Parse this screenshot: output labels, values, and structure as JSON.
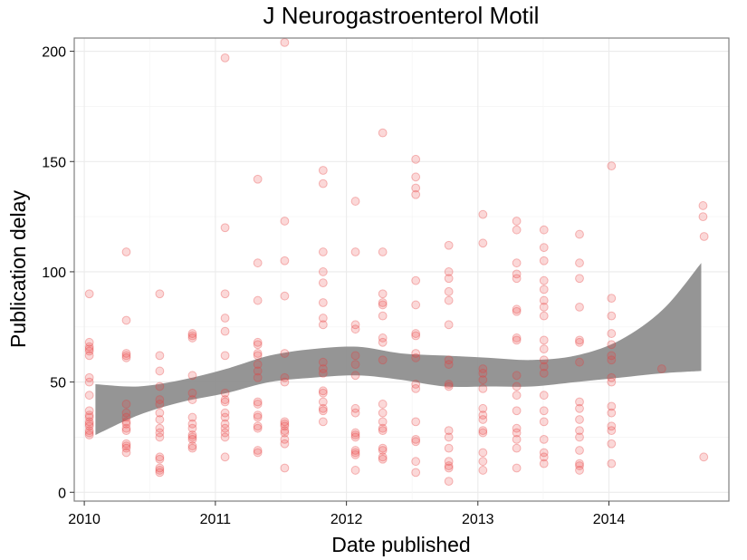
{
  "chart_data": {
    "type": "scatter",
    "title": "J Neurogastroenterol Motil",
    "xlabel": "Date published",
    "ylabel": "Publication delay",
    "x_axis": {
      "type": "date",
      "min": "2009-12-04",
      "max": "2014-12-01",
      "ticks": [
        "2010",
        "2011",
        "2012",
        "2013",
        "2014"
      ]
    },
    "y_axis": {
      "min": -4,
      "max": 206,
      "ticks": [
        0,
        50,
        100,
        150,
        200
      ]
    },
    "grid": true,
    "point_color": "#e53935",
    "band_color": "#808080",
    "points": [
      {
        "x": "2010-01-15",
        "y": 90
      },
      {
        "x": "2010-01-15",
        "y": 68
      },
      {
        "x": "2010-01-15",
        "y": 66
      },
      {
        "x": "2010-01-15",
        "y": 65
      },
      {
        "x": "2010-01-15",
        "y": 64
      },
      {
        "x": "2010-01-15",
        "y": 62
      },
      {
        "x": "2010-01-15",
        "y": 52
      },
      {
        "x": "2010-01-15",
        "y": 50
      },
      {
        "x": "2010-01-15",
        "y": 44
      },
      {
        "x": "2010-01-15",
        "y": 37
      },
      {
        "x": "2010-01-15",
        "y": 35
      },
      {
        "x": "2010-01-15",
        "y": 34
      },
      {
        "x": "2010-01-15",
        "y": 32
      },
      {
        "x": "2010-01-15",
        "y": 31
      },
      {
        "x": "2010-01-15",
        "y": 30
      },
      {
        "x": "2010-01-15",
        "y": 28
      },
      {
        "x": "2010-01-15",
        "y": 27
      },
      {
        "x": "2010-01-15",
        "y": 26
      },
      {
        "x": "2010-04-28",
        "y": 109
      },
      {
        "x": "2010-04-28",
        "y": 78
      },
      {
        "x": "2010-04-28",
        "y": 63
      },
      {
        "x": "2010-04-28",
        "y": 62
      },
      {
        "x": "2010-04-28",
        "y": 61
      },
      {
        "x": "2010-04-28",
        "y": 40
      },
      {
        "x": "2010-04-28",
        "y": 36
      },
      {
        "x": "2010-04-28",
        "y": 34
      },
      {
        "x": "2010-04-28",
        "y": 32
      },
      {
        "x": "2010-04-28",
        "y": 31
      },
      {
        "x": "2010-04-28",
        "y": 29
      },
      {
        "x": "2010-04-28",
        "y": 28
      },
      {
        "x": "2010-04-28",
        "y": 22
      },
      {
        "x": "2010-04-28",
        "y": 21
      },
      {
        "x": "2010-04-28",
        "y": 20
      },
      {
        "x": "2010-04-28",
        "y": 18
      },
      {
        "x": "2010-07-30",
        "y": 90
      },
      {
        "x": "2010-07-30",
        "y": 62
      },
      {
        "x": "2010-07-30",
        "y": 55
      },
      {
        "x": "2010-07-30",
        "y": 48
      },
      {
        "x": "2010-07-30",
        "y": 42
      },
      {
        "x": "2010-07-30",
        "y": 40
      },
      {
        "x": "2010-07-30",
        "y": 36
      },
      {
        "x": "2010-07-30",
        "y": 33
      },
      {
        "x": "2010-07-30",
        "y": 29
      },
      {
        "x": "2010-07-30",
        "y": 27
      },
      {
        "x": "2010-07-30",
        "y": 25
      },
      {
        "x": "2010-07-30",
        "y": 16
      },
      {
        "x": "2010-07-30",
        "y": 15
      },
      {
        "x": "2010-07-30",
        "y": 11
      },
      {
        "x": "2010-07-30",
        "y": 10
      },
      {
        "x": "2010-07-30",
        "y": 9
      },
      {
        "x": "2010-10-29",
        "y": 72
      },
      {
        "x": "2010-10-29",
        "y": 71
      },
      {
        "x": "2010-10-29",
        "y": 70
      },
      {
        "x": "2010-10-29",
        "y": 53
      },
      {
        "x": "2010-10-29",
        "y": 45
      },
      {
        "x": "2010-10-29",
        "y": 42
      },
      {
        "x": "2010-10-29",
        "y": 34
      },
      {
        "x": "2010-10-29",
        "y": 31
      },
      {
        "x": "2010-10-29",
        "y": 29
      },
      {
        "x": "2010-10-29",
        "y": 26
      },
      {
        "x": "2010-10-29",
        "y": 25
      },
      {
        "x": "2010-10-29",
        "y": 24
      },
      {
        "x": "2010-10-29",
        "y": 21
      },
      {
        "x": "2010-10-29",
        "y": 20
      },
      {
        "x": "2011-01-28",
        "y": 197
      },
      {
        "x": "2011-01-28",
        "y": 120
      },
      {
        "x": "2011-01-28",
        "y": 90
      },
      {
        "x": "2011-01-28",
        "y": 79
      },
      {
        "x": "2011-01-28",
        "y": 73
      },
      {
        "x": "2011-01-28",
        "y": 62
      },
      {
        "x": "2011-01-28",
        "y": 45
      },
      {
        "x": "2011-01-28",
        "y": 42
      },
      {
        "x": "2011-01-28",
        "y": 41
      },
      {
        "x": "2011-01-28",
        "y": 36
      },
      {
        "x": "2011-01-28",
        "y": 34
      },
      {
        "x": "2011-01-28",
        "y": 31
      },
      {
        "x": "2011-01-28",
        "y": 29
      },
      {
        "x": "2011-01-28",
        "y": 27
      },
      {
        "x": "2011-01-28",
        "y": 25
      },
      {
        "x": "2011-01-28",
        "y": 16
      },
      {
        "x": "2011-04-29",
        "y": 142
      },
      {
        "x": "2011-04-29",
        "y": 104
      },
      {
        "x": "2011-04-29",
        "y": 87
      },
      {
        "x": "2011-04-29",
        "y": 68
      },
      {
        "x": "2011-04-29",
        "y": 67
      },
      {
        "x": "2011-04-29",
        "y": 63
      },
      {
        "x": "2011-04-29",
        "y": 62
      },
      {
        "x": "2011-04-29",
        "y": 58
      },
      {
        "x": "2011-04-29",
        "y": 55
      },
      {
        "x": "2011-04-29",
        "y": 52
      },
      {
        "x": "2011-04-29",
        "y": 41
      },
      {
        "x": "2011-04-29",
        "y": 40
      },
      {
        "x": "2011-04-29",
        "y": 35
      },
      {
        "x": "2011-04-29",
        "y": 34
      },
      {
        "x": "2011-04-29",
        "y": 30
      },
      {
        "x": "2011-04-29",
        "y": 29
      },
      {
        "x": "2011-04-29",
        "y": 19
      },
      {
        "x": "2011-04-29",
        "y": 18
      },
      {
        "x": "2011-07-13",
        "y": 204
      },
      {
        "x": "2011-07-13",
        "y": 123
      },
      {
        "x": "2011-07-13",
        "y": 105
      },
      {
        "x": "2011-07-13",
        "y": 89
      },
      {
        "x": "2011-07-13",
        "y": 63
      },
      {
        "x": "2011-07-13",
        "y": 52
      },
      {
        "x": "2011-07-13",
        "y": 50
      },
      {
        "x": "2011-07-13",
        "y": 32
      },
      {
        "x": "2011-07-13",
        "y": 31
      },
      {
        "x": "2011-07-13",
        "y": 30
      },
      {
        "x": "2011-07-13",
        "y": 28
      },
      {
        "x": "2011-07-13",
        "y": 27
      },
      {
        "x": "2011-07-13",
        "y": 24
      },
      {
        "x": "2011-07-13",
        "y": 22
      },
      {
        "x": "2011-07-13",
        "y": 11
      },
      {
        "x": "2011-10-28",
        "y": 146
      },
      {
        "x": "2011-10-28",
        "y": 140
      },
      {
        "x": "2011-10-28",
        "y": 109
      },
      {
        "x": "2011-10-28",
        "y": 100
      },
      {
        "x": "2011-10-28",
        "y": 95
      },
      {
        "x": "2011-10-28",
        "y": 86
      },
      {
        "x": "2011-10-28",
        "y": 79
      },
      {
        "x": "2011-10-28",
        "y": 76
      },
      {
        "x": "2011-10-28",
        "y": 59
      },
      {
        "x": "2011-10-28",
        "y": 56
      },
      {
        "x": "2011-10-28",
        "y": 54
      },
      {
        "x": "2011-10-28",
        "y": 46
      },
      {
        "x": "2011-10-28",
        "y": 45
      },
      {
        "x": "2011-10-28",
        "y": 41
      },
      {
        "x": "2011-10-28",
        "y": 38
      },
      {
        "x": "2011-10-28",
        "y": 37
      },
      {
        "x": "2011-10-28",
        "y": 32
      },
      {
        "x": "2012-01-26",
        "y": 132
      },
      {
        "x": "2012-01-26",
        "y": 109
      },
      {
        "x": "2012-01-26",
        "y": 76
      },
      {
        "x": "2012-01-26",
        "y": 74
      },
      {
        "x": "2012-01-26",
        "y": 62
      },
      {
        "x": "2012-01-26",
        "y": 58
      },
      {
        "x": "2012-01-26",
        "y": 53
      },
      {
        "x": "2012-01-26",
        "y": 38
      },
      {
        "x": "2012-01-26",
        "y": 36
      },
      {
        "x": "2012-01-26",
        "y": 27
      },
      {
        "x": "2012-01-26",
        "y": 26
      },
      {
        "x": "2012-01-26",
        "y": 25
      },
      {
        "x": "2012-01-26",
        "y": 19
      },
      {
        "x": "2012-01-26",
        "y": 18
      },
      {
        "x": "2012-01-26",
        "y": 17
      },
      {
        "x": "2012-01-26",
        "y": 10
      },
      {
        "x": "2012-04-11",
        "y": 163
      },
      {
        "x": "2012-04-11",
        "y": 109
      },
      {
        "x": "2012-04-11",
        "y": 90
      },
      {
        "x": "2012-04-11",
        "y": 86
      },
      {
        "x": "2012-04-11",
        "y": 85
      },
      {
        "x": "2012-04-11",
        "y": 80
      },
      {
        "x": "2012-04-11",
        "y": 70
      },
      {
        "x": "2012-04-11",
        "y": 68
      },
      {
        "x": "2012-04-11",
        "y": 60
      },
      {
        "x": "2012-04-11",
        "y": 40
      },
      {
        "x": "2012-04-11",
        "y": 36
      },
      {
        "x": "2012-04-11",
        "y": 32
      },
      {
        "x": "2012-04-11",
        "y": 29
      },
      {
        "x": "2012-04-11",
        "y": 28
      },
      {
        "x": "2012-04-11",
        "y": 20
      },
      {
        "x": "2012-04-11",
        "y": 19
      },
      {
        "x": "2012-04-11",
        "y": 16
      },
      {
        "x": "2012-04-11",
        "y": 15
      },
      {
        "x": "2012-07-12",
        "y": 151
      },
      {
        "x": "2012-07-12",
        "y": 143
      },
      {
        "x": "2012-07-12",
        "y": 138
      },
      {
        "x": "2012-07-12",
        "y": 135
      },
      {
        "x": "2012-07-12",
        "y": 96
      },
      {
        "x": "2012-07-12",
        "y": 85
      },
      {
        "x": "2012-07-12",
        "y": 72
      },
      {
        "x": "2012-07-12",
        "y": 71
      },
      {
        "x": "2012-07-12",
        "y": 63
      },
      {
        "x": "2012-07-12",
        "y": 61
      },
      {
        "x": "2012-07-12",
        "y": 49
      },
      {
        "x": "2012-07-12",
        "y": 47
      },
      {
        "x": "2012-07-12",
        "y": 32
      },
      {
        "x": "2012-07-12",
        "y": 24
      },
      {
        "x": "2012-07-12",
        "y": 23
      },
      {
        "x": "2012-07-12",
        "y": 14
      },
      {
        "x": "2012-07-12",
        "y": 9
      },
      {
        "x": "2012-10-12",
        "y": 112
      },
      {
        "x": "2012-10-12",
        "y": 100
      },
      {
        "x": "2012-10-12",
        "y": 97
      },
      {
        "x": "2012-10-12",
        "y": 91
      },
      {
        "x": "2012-10-12",
        "y": 87
      },
      {
        "x": "2012-10-12",
        "y": 76
      },
      {
        "x": "2012-10-12",
        "y": 60
      },
      {
        "x": "2012-10-12",
        "y": 58
      },
      {
        "x": "2012-10-12",
        "y": 49
      },
      {
        "x": "2012-10-12",
        "y": 48
      },
      {
        "x": "2012-10-12",
        "y": 28
      },
      {
        "x": "2012-10-12",
        "y": 25
      },
      {
        "x": "2012-10-12",
        "y": 20
      },
      {
        "x": "2012-10-12",
        "y": 14
      },
      {
        "x": "2012-10-12",
        "y": 12
      },
      {
        "x": "2012-10-12",
        "y": 11
      },
      {
        "x": "2012-10-12",
        "y": 5
      },
      {
        "x": "2013-01-15",
        "y": 126
      },
      {
        "x": "2013-01-15",
        "y": 113
      },
      {
        "x": "2013-01-15",
        "y": 56
      },
      {
        "x": "2013-01-15",
        "y": 54
      },
      {
        "x": "2013-01-15",
        "y": 51
      },
      {
        "x": "2013-01-15",
        "y": 47
      },
      {
        "x": "2013-01-15",
        "y": 38
      },
      {
        "x": "2013-01-15",
        "y": 35
      },
      {
        "x": "2013-01-15",
        "y": 33
      },
      {
        "x": "2013-01-15",
        "y": 28
      },
      {
        "x": "2013-01-15",
        "y": 27
      },
      {
        "x": "2013-01-15",
        "y": 18
      },
      {
        "x": "2013-01-15",
        "y": 14
      },
      {
        "x": "2013-01-15",
        "y": 10
      },
      {
        "x": "2013-04-19",
        "y": 123
      },
      {
        "x": "2013-04-19",
        "y": 119
      },
      {
        "x": "2013-04-19",
        "y": 104
      },
      {
        "x": "2013-04-19",
        "y": 99
      },
      {
        "x": "2013-04-19",
        "y": 97
      },
      {
        "x": "2013-04-19",
        "y": 83
      },
      {
        "x": "2013-04-19",
        "y": 82
      },
      {
        "x": "2013-04-19",
        "y": 70
      },
      {
        "x": "2013-04-19",
        "y": 69
      },
      {
        "x": "2013-04-19",
        "y": 53
      },
      {
        "x": "2013-04-19",
        "y": 48
      },
      {
        "x": "2013-04-19",
        "y": 44
      },
      {
        "x": "2013-04-19",
        "y": 37
      },
      {
        "x": "2013-04-19",
        "y": 29
      },
      {
        "x": "2013-04-19",
        "y": 27
      },
      {
        "x": "2013-04-19",
        "y": 24
      },
      {
        "x": "2013-04-19",
        "y": 20
      },
      {
        "x": "2013-04-19",
        "y": 11
      },
      {
        "x": "2013-07-04",
        "y": 119
      },
      {
        "x": "2013-07-04",
        "y": 111
      },
      {
        "x": "2013-07-04",
        "y": 105
      },
      {
        "x": "2013-07-04",
        "y": 96
      },
      {
        "x": "2013-07-04",
        "y": 92
      },
      {
        "x": "2013-07-04",
        "y": 87
      },
      {
        "x": "2013-07-04",
        "y": 84
      },
      {
        "x": "2013-07-04",
        "y": 80
      },
      {
        "x": "2013-07-04",
        "y": 69
      },
      {
        "x": "2013-07-04",
        "y": 65
      },
      {
        "x": "2013-07-04",
        "y": 60
      },
      {
        "x": "2013-07-04",
        "y": 57
      },
      {
        "x": "2013-07-04",
        "y": 54
      },
      {
        "x": "2013-07-04",
        "y": 44
      },
      {
        "x": "2013-07-04",
        "y": 37
      },
      {
        "x": "2013-07-04",
        "y": 32
      },
      {
        "x": "2013-07-04",
        "y": 24
      },
      {
        "x": "2013-07-04",
        "y": 18
      },
      {
        "x": "2013-07-04",
        "y": 16
      },
      {
        "x": "2013-07-04",
        "y": 13
      },
      {
        "x": "2013-10-11",
        "y": 117
      },
      {
        "x": "2013-10-11",
        "y": 104
      },
      {
        "x": "2013-10-11",
        "y": 97
      },
      {
        "x": "2013-10-11",
        "y": 84
      },
      {
        "x": "2013-10-11",
        "y": 69
      },
      {
        "x": "2013-10-11",
        "y": 68
      },
      {
        "x": "2013-10-11",
        "y": 59
      },
      {
        "x": "2013-10-11",
        "y": 41
      },
      {
        "x": "2013-10-11",
        "y": 38
      },
      {
        "x": "2013-10-11",
        "y": 33
      },
      {
        "x": "2013-10-11",
        "y": 28
      },
      {
        "x": "2013-10-11",
        "y": 25
      },
      {
        "x": "2013-10-11",
        "y": 19
      },
      {
        "x": "2013-10-11",
        "y": 13
      },
      {
        "x": "2013-10-11",
        "y": 12
      },
      {
        "x": "2013-10-11",
        "y": 10
      },
      {
        "x": "2014-01-08",
        "y": 148
      },
      {
        "x": "2014-01-08",
        "y": 88
      },
      {
        "x": "2014-01-08",
        "y": 80
      },
      {
        "x": "2014-01-08",
        "y": 72
      },
      {
        "x": "2014-01-08",
        "y": 67
      },
      {
        "x": "2014-01-08",
        "y": 62
      },
      {
        "x": "2014-01-08",
        "y": 60
      },
      {
        "x": "2014-01-08",
        "y": 52
      },
      {
        "x": "2014-01-08",
        "y": 50
      },
      {
        "x": "2014-01-08",
        "y": 39
      },
      {
        "x": "2014-01-08",
        "y": 36
      },
      {
        "x": "2014-01-08",
        "y": 30
      },
      {
        "x": "2014-01-08",
        "y": 28
      },
      {
        "x": "2014-01-08",
        "y": 22
      },
      {
        "x": "2014-01-08",
        "y": 13
      },
      {
        "x": "2014-05-28",
        "y": 56
      },
      {
        "x": "2014-09-20",
        "y": 130
      },
      {
        "x": "2014-09-20",
        "y": 125
      },
      {
        "x": "2014-09-23",
        "y": 116
      },
      {
        "x": "2014-09-22",
        "y": 16
      }
    ],
    "smooth_band": {
      "x": [
        "2010-02-01",
        "2010-06-01",
        "2010-10-01",
        "2011-02-01",
        "2011-06-01",
        "2011-10-01",
        "2012-02-01",
        "2012-06-01",
        "2012-10-01",
        "2013-02-01",
        "2013-06-01",
        "2013-10-01",
        "2014-02-01",
        "2014-06-01",
        "2014-09-15"
      ],
      "upper": [
        49,
        48,
        51,
        56,
        62,
        65,
        66,
        63,
        62,
        61,
        60,
        62,
        69,
        83,
        104
      ],
      "lower": [
        26,
        35,
        41,
        45,
        50,
        52,
        53,
        51,
        48,
        48,
        48,
        50,
        52,
        54,
        55
      ]
    }
  }
}
